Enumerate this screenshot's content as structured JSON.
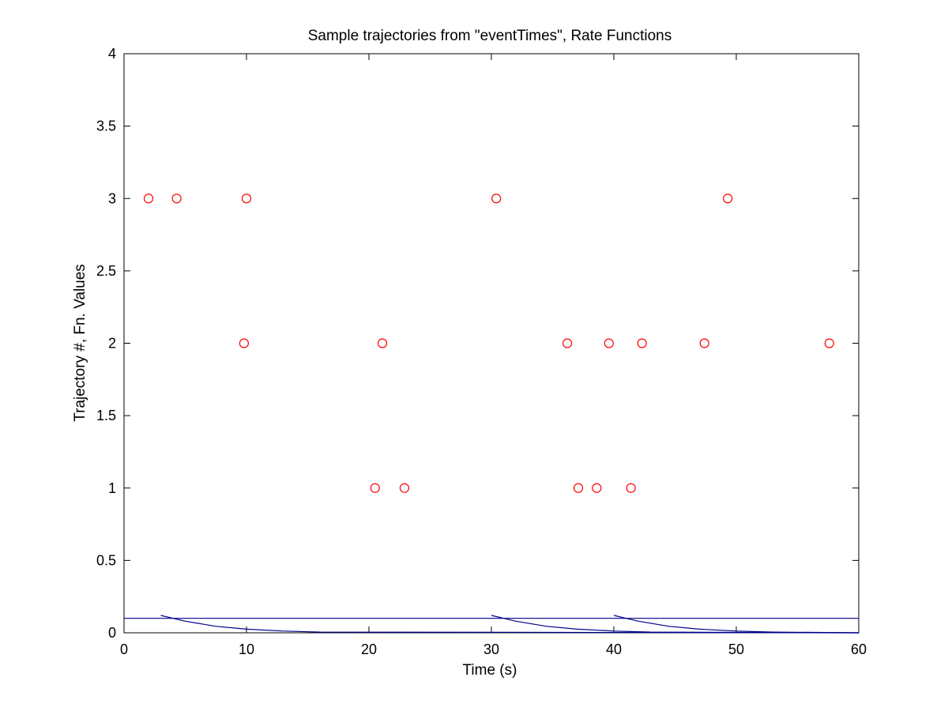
{
  "chart_data": {
    "type": "scatter",
    "title": "Sample trajectories from \"eventTimes\", Rate Functions",
    "xlabel": "Time (s)",
    "ylabel": "Trajectory #, Fn. Values",
    "xlim": [
      0,
      60
    ],
    "ylim": [
      0,
      4
    ],
    "xticks": [
      "0",
      "10",
      "20",
      "30",
      "40",
      "50",
      "60"
    ],
    "yticks": [
      "0",
      "0.5",
      "1",
      "1.5",
      "2",
      "2.5",
      "3",
      "3.5",
      "4"
    ],
    "grid": false,
    "legend": "none",
    "event_series": [
      {
        "trajectory": 1,
        "x": [
          20.5,
          22.9,
          37.1,
          38.6,
          41.4
        ]
      },
      {
        "trajectory": 2,
        "x": [
          9.8,
          21.1,
          36.2,
          39.6,
          42.3,
          47.4,
          57.6
        ]
      },
      {
        "trajectory": 3,
        "x": [
          2.0,
          4.3,
          10.0,
          30.4,
          49.3
        ]
      }
    ],
    "rate_functions": [
      {
        "x": [
          0,
          60
        ],
        "y": [
          0.1,
          0.1
        ]
      },
      {
        "x": [
          3.0,
          5.0,
          7.5,
          10.0,
          13.0,
          16.0,
          60.0
        ],
        "y": [
          0.12,
          0.08,
          0.045,
          0.025,
          0.012,
          0.005,
          0.0
        ]
      },
      {
        "x": [
          30.0,
          32.0,
          34.5,
          37.0,
          40.0,
          43.0,
          60.0
        ],
        "y": [
          0.12,
          0.08,
          0.045,
          0.025,
          0.012,
          0.005,
          0.0
        ]
      },
      {
        "x": [
          40.0,
          42.0,
          44.5,
          47.0,
          50.0,
          53.0,
          60.0
        ],
        "y": [
          0.12,
          0.08,
          0.045,
          0.025,
          0.012,
          0.005,
          0.0
        ]
      }
    ],
    "colors": {
      "events": "#ff0000",
      "rate": "#00008b",
      "axes": "#000000"
    }
  }
}
